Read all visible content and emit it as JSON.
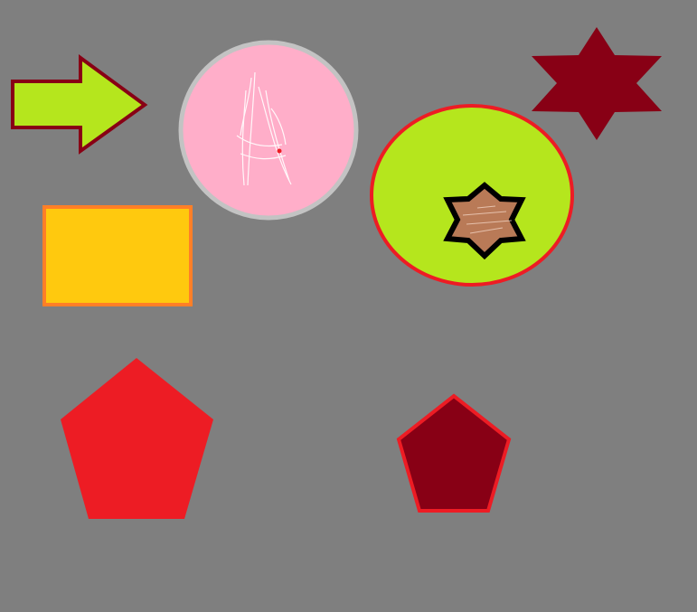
{
  "canvas": {
    "background": "#7f7f7f"
  },
  "shapes": [
    {
      "id": "arrow",
      "type": "arrow",
      "direction": "right",
      "fill": "#b5e61d",
      "stroke": "#880015"
    },
    {
      "id": "pink-circle",
      "type": "circle",
      "fill": "#ffaec9",
      "stroke": "#c3c3c3",
      "scribble": "#ffffff",
      "dot": "#ed1c24"
    },
    {
      "id": "dark-red-star",
      "type": "six-point-star",
      "fill": "#880015"
    },
    {
      "id": "green-ellipse",
      "type": "ellipse",
      "fill": "#b5e61d",
      "stroke": "#ed1c24"
    },
    {
      "id": "brown-star",
      "type": "six-point-star",
      "fill": "#b97a57",
      "stroke": "#000000"
    },
    {
      "id": "yellow-rectangle",
      "type": "rectangle",
      "fill": "#ffc90e",
      "stroke": "#ff7f27"
    },
    {
      "id": "red-pentagon",
      "type": "pentagon",
      "fill": "#ed1c24"
    },
    {
      "id": "dark-red-pentagon",
      "type": "pentagon",
      "fill": "#880015",
      "stroke": "#ed1c24"
    }
  ]
}
